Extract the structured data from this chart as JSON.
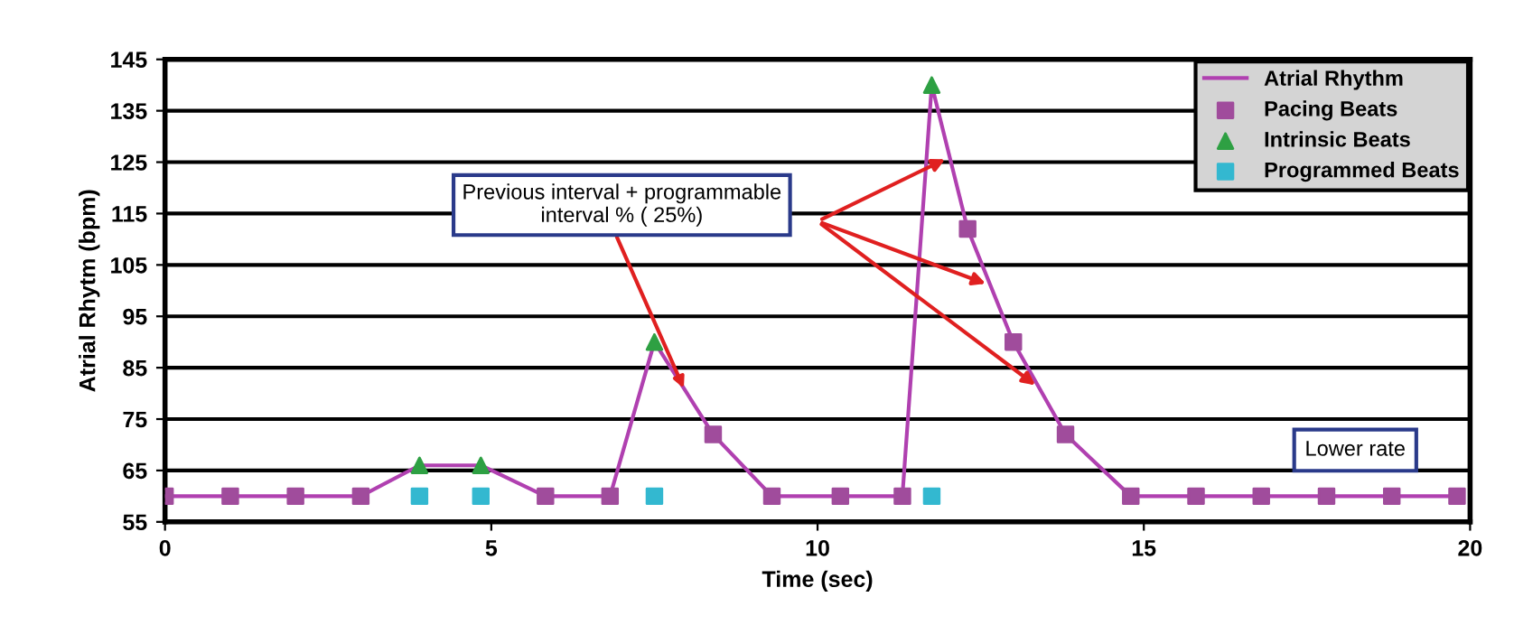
{
  "chart_data": {
    "type": "line",
    "xlabel": "Time (sec)",
    "ylabel": "Atrial Rhytm (bpm)",
    "xlim": [
      0,
      20
    ],
    "xticks": [
      0,
      5,
      10,
      15,
      20
    ],
    "ylim": [
      55,
      145
    ],
    "yticks": [
      55,
      65,
      75,
      85,
      95,
      105,
      115,
      125,
      135,
      145
    ],
    "grid": "y",
    "legend": "top right",
    "series": [
      {
        "name": "Atrial Rhythm",
        "color": "#b040b0",
        "marker": "none",
        "x": [
          0,
          1,
          2,
          3,
          3.9,
          4.84,
          5.83,
          6.82,
          7.5,
          8.4,
          9.3,
          10.35,
          11.3,
          11.75,
          12.3,
          13.0,
          13.8,
          14.8,
          15.8,
          16.8,
          17.8,
          18.8,
          19.8
        ],
        "values": [
          60,
          60,
          60,
          60,
          66,
          66,
          60,
          60,
          90,
          72,
          60,
          60,
          60,
          140,
          112,
          90,
          72,
          60,
          60,
          60,
          60,
          60,
          60
        ]
      },
      {
        "name": "Pacing Beats",
        "type": "scatter",
        "color": "#a04c9c",
        "marker": "square",
        "x": [
          0,
          1,
          2,
          3,
          5.83,
          6.82,
          8.4,
          9.3,
          10.35,
          11.3,
          12.3,
          13.0,
          13.8,
          14.8,
          15.8,
          16.8,
          17.8,
          18.8,
          19.8
        ],
        "values": [
          60,
          60,
          60,
          60,
          60,
          60,
          72,
          60,
          60,
          60,
          112,
          90,
          72,
          60,
          60,
          60,
          60,
          60,
          60
        ]
      },
      {
        "name": "Intrinsic Beats",
        "type": "scatter",
        "color": "#2ea043",
        "marker": "triangle",
        "x": [
          3.9,
          4.84,
          7.5,
          11.75
        ],
        "values": [
          66,
          66,
          90,
          140
        ]
      },
      {
        "name": "Programmed Beats",
        "type": "scatter",
        "color": "#33b8d0",
        "marker": "square",
        "x": [
          3.9,
          4.84,
          7.5,
          11.75
        ],
        "values": [
          60,
          60,
          60,
          60
        ]
      }
    ],
    "annotations": [
      {
        "text": "Previous interval + programmable\ninterval % ( 25%)",
        "x": 7.95,
        "y": 81
      },
      "Lower rate"
    ]
  }
}
